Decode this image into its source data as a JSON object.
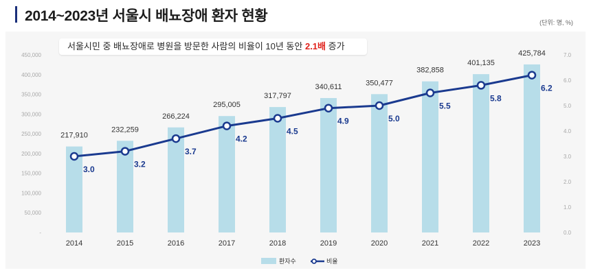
{
  "header": {
    "title": "2014~2023년 서울시 배뇨장애 환자 현황",
    "unit": "(단위: 명, %)"
  },
  "callout": {
    "text_before": "서울시민 중 배뇨장애로 병원을 방문한 사람의 비율이 10년 동안 ",
    "highlight": "2.1배",
    "text_after": " 증가"
  },
  "colors": {
    "bar": "#b7dde9",
    "line": "#1a3a8f",
    "title_accent": "#1a2f7a",
    "highlight": "#e0211b"
  },
  "chart_data": {
    "type": "bar+line",
    "categories": [
      "2014",
      "2015",
      "2016",
      "2017",
      "2018",
      "2019",
      "2020",
      "2021",
      "2022",
      "2023"
    ],
    "series": [
      {
        "name": "환자수",
        "type": "bar",
        "axis": "left",
        "values": [
          217910,
          232259,
          266224,
          295005,
          317797,
          340611,
          350477,
          382858,
          401135,
          425784
        ],
        "labels": [
          "217,910",
          "232,259",
          "266,224",
          "295,005",
          "317,797",
          "340,611",
          "350,477",
          "382,858",
          "401,135",
          "425,784"
        ]
      },
      {
        "name": "비율",
        "type": "line",
        "axis": "right",
        "values": [
          3.0,
          3.2,
          3.7,
          4.2,
          4.5,
          4.9,
          5.0,
          5.5,
          5.8,
          6.2
        ],
        "labels": [
          "3.0",
          "3.2",
          "3.7",
          "4.2",
          "4.5",
          "4.9",
          "5.0",
          "5.5",
          "5.8",
          "6.2"
        ]
      }
    ],
    "y_left": {
      "ticks": [
        0,
        50000,
        100000,
        150000,
        200000,
        250000,
        300000,
        350000,
        400000,
        450000
      ],
      "tick_labels": [
        "-",
        "50,000",
        "100,000",
        "150,000",
        "200,000",
        "250,000",
        "300,000",
        "350,000",
        "400,000",
        "450,000"
      ],
      "range": [
        0,
        450000
      ]
    },
    "y_right": {
      "ticks": [
        0,
        1,
        2,
        3,
        4,
        5,
        6,
        7
      ],
      "tick_labels": [
        "0.0",
        "1.0",
        "2.0",
        "3.0",
        "4.0",
        "5.0",
        "6.0",
        "7.0"
      ],
      "range": [
        0,
        7
      ]
    },
    "legend": [
      "환자수",
      "비율"
    ],
    "legend_position": "bottom",
    "grid": false
  }
}
